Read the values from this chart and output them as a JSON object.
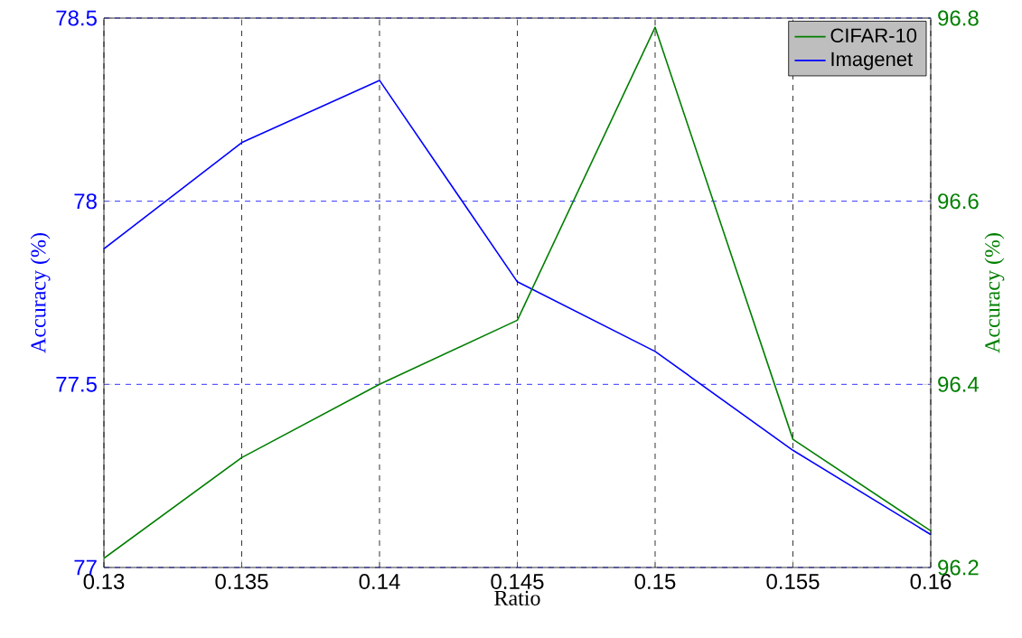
{
  "chart_data": {
    "type": "line",
    "xlabel": "Ratio",
    "ylabel": "Accuracy (%)",
    "y2label": "Accuracy (%)",
    "x": [
      0.13,
      0.135,
      0.14,
      0.145,
      0.15,
      0.155,
      0.16
    ],
    "series": [
      {
        "name": "CIFAR-10",
        "color": "#007f00",
        "axis": "y2",
        "values": [
          96.21,
          96.32,
          96.4,
          96.47,
          96.79,
          96.34,
          96.24
        ]
      },
      {
        "name": "Imagenet",
        "color": "#0000ff",
        "values": [
          77.87,
          78.16,
          78.33,
          77.78,
          77.59,
          77.32,
          77.09
        ]
      }
    ],
    "xlim": [
      0.13,
      0.16
    ],
    "xticks": [
      0.13,
      0.135,
      0.14,
      0.145,
      0.15,
      0.155,
      0.16
    ],
    "ylim": [
      77,
      78.5
    ],
    "yticks": [
      77,
      77.5,
      78,
      78.5
    ],
    "y2lim": [
      96.2,
      96.8
    ],
    "y2ticks": [
      96.2,
      96.4,
      96.6,
      96.8
    ],
    "grid": true,
    "legend": "top right",
    "marker": "none",
    "line_style": "solid"
  }
}
